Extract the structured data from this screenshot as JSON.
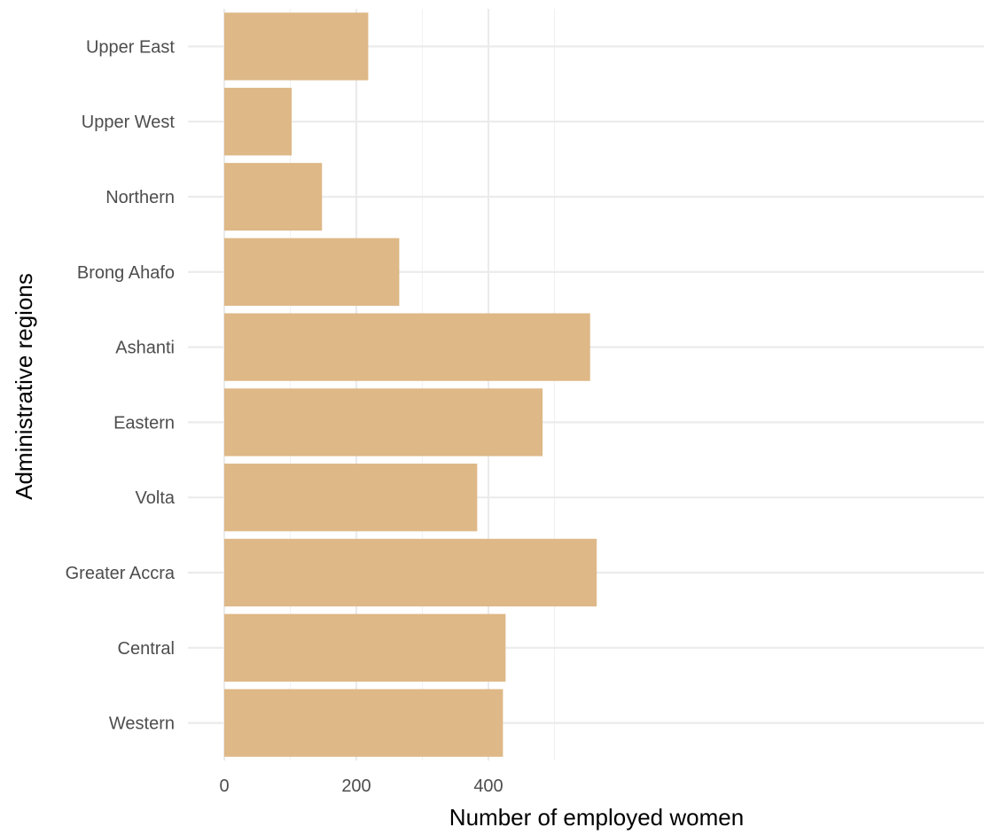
{
  "chart_data": {
    "type": "bar",
    "orientation": "horizontal",
    "title": "",
    "xlabel": "Number of employed women",
    "ylabel": "Administrative regions",
    "categories": [
      "Western",
      "Central",
      "Greater Accra",
      "Volta",
      "Eastern",
      "Ashanti",
      "Brong Ahafo",
      "Northern",
      "Upper West",
      "Upper East"
    ],
    "values": [
      422,
      426,
      564,
      383,
      482,
      554,
      265,
      148,
      102,
      218
    ],
    "xlim": [
      0,
      565
    ],
    "x_ticks": [
      0,
      200,
      400
    ],
    "x_minor_ticks": [
      100,
      300,
      500
    ],
    "grid": true,
    "bar_color": "#deb887"
  }
}
